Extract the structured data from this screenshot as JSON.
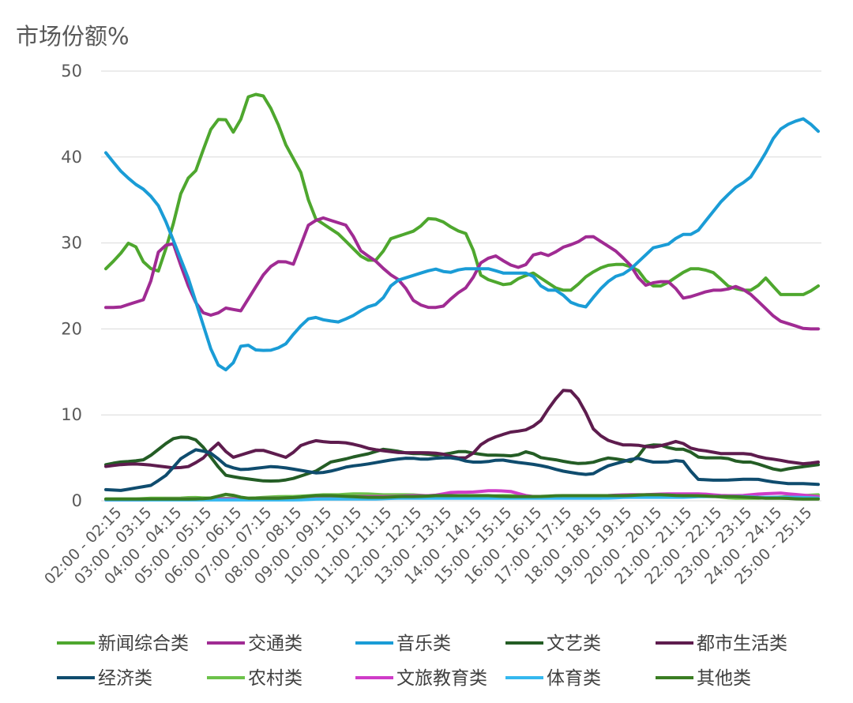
{
  "chart_data": {
    "type": "line",
    "title": "",
    "ylabel": "市场份额%",
    "xlabel": "",
    "ylim": [
      0,
      50
    ],
    "yticks": [
      0,
      10,
      20,
      30,
      40,
      50
    ],
    "grid": true,
    "legend_position": "bottom",
    "x_tick_labels": [
      "02:00 - 02:15",
      "03:00 - 03:15",
      "04:00 - 04:15",
      "05:00 - 05:15",
      "06:00 - 06:15",
      "07:00 - 07:15",
      "08:00 - 08:15",
      "09:00 - 09:15",
      "10:00 - 10:15",
      "11:00 - 11:15",
      "12:00 - 12:15",
      "13:00 - 13:15",
      "14:00 - 14:15",
      "15:00 - 15:15",
      "16:00 - 16:15",
      "17:00 - 17:15",
      "18:00 - 18:15",
      "19:00 - 19:15",
      "20:00 - 20:15",
      "21:00 - 21:15",
      "22:00 - 22:15",
      "23:00 - 23:15",
      "24:00 - 24:15",
      "25:00 - 25:15"
    ],
    "series": [
      {
        "name": "新闻综合类",
        "color": "#4ea72e",
        "hourly": [
          27,
          28.5,
          30.5,
          27.5,
          26.5,
          31,
          37,
          38.5,
          43,
          45,
          42.5,
          47,
          47.5,
          45,
          41,
          38.5,
          33,
          32,
          31,
          29.5,
          28,
          28,
          30.5,
          31,
          31.5,
          33,
          32.5,
          31.5,
          31,
          26,
          25.5,
          25,
          26,
          26.5,
          25.5,
          24.5,
          24.5,
          26,
          27,
          27.5,
          27.5,
          27,
          25,
          25,
          26,
          27,
          27,
          26.5,
          25,
          24.5,
          24.5,
          26,
          24,
          24,
          24,
          25
        ]
      },
      {
        "name": "交通类",
        "color": "#a02b93",
        "hourly": [
          22.5,
          22.5,
          23,
          23.5,
          29.5,
          30,
          25.5,
          22,
          21.5,
          22.5,
          22,
          24.5,
          27,
          28,
          27.5,
          32,
          33,
          32.5,
          32,
          29,
          28,
          26.5,
          25.5,
          23,
          22.5,
          22.5,
          24,
          25,
          28,
          28.5,
          27.5,
          27,
          29,
          28.5,
          29.5,
          30,
          31,
          30,
          29,
          27.5,
          25,
          25.5,
          25.5,
          23.5,
          24,
          24.5,
          24.5,
          25,
          24,
          22.5,
          21,
          20.5,
          20,
          20
        ]
      },
      {
        "name": "音乐类",
        "color": "#1a9cd6",
        "hourly": [
          40.5,
          38.5,
          37,
          36,
          34,
          30,
          26,
          21,
          16,
          15,
          18.5,
          17.5,
          17.5,
          18,
          20,
          21.5,
          21,
          20.8,
          21.5,
          22.5,
          23,
          25.5,
          26,
          26.5,
          27,
          26.5,
          27,
          27,
          27,
          26.5,
          26.5,
          26.5,
          24.5,
          24.5,
          23,
          22.5,
          24.5,
          26,
          26.5,
          28,
          29.5,
          29.8,
          31,
          31,
          33,
          35,
          36.5,
          37.5,
          40,
          43,
          44,
          44.5,
          43
        ]
      },
      {
        "name": "文艺类",
        "color": "#245d25",
        "hourly": [
          4.2,
          4.5,
          4.6,
          4.8,
          6,
          7.2,
          7.5,
          7,
          5,
          3,
          2.7,
          2.5,
          2.3,
          2.3,
          2.5,
          3,
          3.5,
          4.5,
          4.8,
          5.2,
          5.5,
          6,
          5.8,
          5.5,
          5.5,
          5.3,
          5.5,
          5.8,
          5.5,
          5.3,
          5.3,
          5.2,
          5.8,
          5,
          4.8,
          4.5,
          4.3,
          4.5,
          5,
          4.8,
          4.5,
          6.5,
          6.5,
          6,
          6,
          5,
          5,
          5,
          4.5,
          4.5,
          4,
          3.5,
          3.8,
          4,
          4.2
        ]
      },
      {
        "name": "都市生活类",
        "color": "#5e1c4e",
        "hourly": [
          4,
          4.2,
          4.3,
          4.2,
          4,
          3.8,
          4,
          5,
          6.8,
          5,
          5.5,
          6,
          5.5,
          5,
          6.5,
          7,
          6.8,
          6.8,
          6.5,
          6,
          5.8,
          5.6,
          5.6,
          5.6,
          5.5,
          5,
          5,
          6.8,
          7.5,
          8,
          8.2,
          9,
          11.5,
          13.3,
          11.5,
          8,
          7,
          6.5,
          6.5,
          6.2,
          6.5,
          7,
          6,
          5.8,
          5.5,
          5.5,
          5.5,
          5,
          4.8,
          4.5,
          4.3,
          4.5
        ]
      },
      {
        "name": "经济类",
        "color": "#0f4c6e",
        "hourly": [
          1.3,
          1.2,
          1.5,
          1.8,
          3,
          5,
          6,
          5.5,
          4,
          3.6,
          3.8,
          4,
          3.8,
          3.5,
          3.2,
          3.5,
          4,
          4.2,
          4.5,
          4.8,
          5,
          4.8,
          5,
          5,
          4.5,
          4.5,
          4.8,
          4.5,
          4.3,
          4,
          3.5,
          3.2,
          3,
          4,
          4.5,
          5,
          4.5,
          4.5,
          4.8,
          2.5,
          2.4,
          2.4,
          2.5,
          2.5,
          2.2,
          2,
          2,
          1.9
        ]
      },
      {
        "name": "农村类",
        "color": "#6cc24a",
        "hourly": [
          0.2,
          0.2,
          0.2,
          0.3,
          0.3,
          0.3,
          0.4,
          0.3,
          0.3,
          0.3,
          0.3,
          0.4,
          0.5,
          0.5,
          0.6,
          0.7,
          0.7,
          0.8,
          0.8,
          0.7,
          0.7,
          0.7,
          0.6,
          0.5,
          0.5,
          0.5,
          0.5,
          0.6,
          0.6,
          0.5,
          0.5,
          0.5,
          0.6,
          0.6,
          0.6,
          0.6,
          0.7,
          0.7,
          0.6,
          0.6,
          0.6,
          0.6,
          0.5,
          0.3,
          0.3,
          0.3,
          0.4,
          0.5,
          0.6,
          0.7
        ]
      },
      {
        "name": "文旅教育类",
        "color": "#cf3cc8",
        "hourly": [
          0.1,
          0.1,
          0.1,
          0.2,
          0.2,
          0.2,
          0.2,
          0.2,
          0.3,
          0.3,
          0.3,
          0.3,
          0.4,
          0.5,
          0.5,
          0.5,
          0.6,
          0.6,
          1,
          1,
          1.2,
          1.1,
          0.5,
          0.5,
          0.6,
          0.6,
          0.6,
          0.7,
          0.7,
          0.8,
          0.8,
          0.8,
          0.6,
          0.6,
          0.8,
          0.9,
          0.7,
          0.5
        ]
      },
      {
        "name": "体育类",
        "color": "#35b8ef",
        "hourly": [
          0.1,
          0.1,
          0.1,
          0.1,
          0.1,
          0.1,
          0.1,
          0.1,
          0.1,
          0.1,
          0.1,
          0.2,
          0.2,
          0.2,
          0.2,
          0.3,
          0.3,
          0.3,
          0.3,
          0.3,
          0.3,
          0.3,
          0.3,
          0.3,
          0.3,
          0.3,
          0.3,
          0.4,
          0.4,
          0.4,
          0.4,
          0.5,
          0.5,
          0.5,
          0.4,
          0.4,
          0.4,
          0.3
        ]
      },
      {
        "name": "其他类",
        "color": "#3a7d22",
        "hourly": [
          0.2,
          0.2,
          0.2,
          0.2,
          0.2,
          0.2,
          0.3,
          0.8,
          0.3,
          0.3,
          0.3,
          0.4,
          0.6,
          0.6,
          0.5,
          0.4,
          0.4,
          0.5,
          0.5,
          0.6,
          0.6,
          0.6,
          0.6,
          0.5,
          0.5,
          0.5,
          0.6,
          0.6,
          0.6,
          0.6,
          0.6,
          0.7,
          0.7,
          0.6,
          0.6,
          0.5,
          0.5,
          0.4,
          0.3,
          0.3,
          0.2,
          0.2
        ]
      }
    ]
  }
}
